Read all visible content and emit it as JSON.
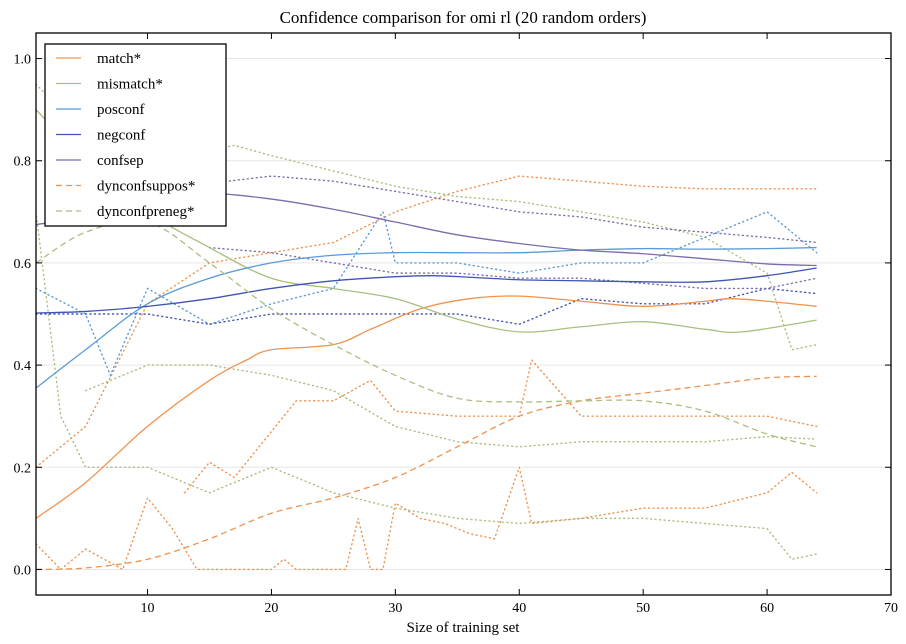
{
  "chart_data": {
    "type": "line",
    "title": "Confidence comparison for omi rl (20 random orders)",
    "xlabel": "Size of training set",
    "ylabel": "",
    "xlim": [
      1,
      70
    ],
    "ylim": [
      -0.05,
      1.05
    ],
    "xticks": [
      10,
      20,
      30,
      40,
      50,
      60,
      70
    ],
    "yticks": [
      0.0,
      0.2,
      0.4,
      0.6,
      0.8,
      1.0
    ],
    "ytick_labels": [
      "0.0",
      "0.2",
      "0.4",
      "0.6",
      "0.8",
      "1.0"
    ],
    "grid": "horizontal",
    "legend_position": "top-left",
    "series": [
      {
        "name": "match*",
        "color": "#f0924e",
        "style": "solid",
        "x": [
          1,
          5,
          10,
          15,
          18,
          20,
          25,
          28,
          32,
          36,
          40,
          45,
          50,
          55,
          57,
          60,
          64
        ],
        "y": [
          0.1,
          0.17,
          0.28,
          0.37,
          0.41,
          0.43,
          0.44,
          0.47,
          0.51,
          0.53,
          0.535,
          0.525,
          0.515,
          0.525,
          0.53,
          0.525,
          0.515
        ]
      },
      {
        "name": "mismatch*",
        "color": "#a9bf80",
        "style": "solid",
        "x": [
          1,
          5,
          10,
          15,
          20,
          25,
          30,
          35,
          40,
          45,
          50,
          55,
          58,
          64
        ],
        "y": [
          0.9,
          0.8,
          0.7,
          0.63,
          0.57,
          0.55,
          0.53,
          0.49,
          0.465,
          0.475,
          0.485,
          0.47,
          0.465,
          0.488
        ]
      },
      {
        "name": "posconf",
        "color": "#5b9bd5",
        "style": "solid",
        "x": [
          1,
          5,
          10,
          15,
          20,
          25,
          30,
          35,
          40,
          45,
          50,
          55,
          60,
          64
        ],
        "y": [
          0.355,
          0.43,
          0.52,
          0.57,
          0.6,
          0.615,
          0.62,
          0.62,
          0.62,
          0.625,
          0.628,
          0.627,
          0.628,
          0.63
        ]
      },
      {
        "name": "negconf",
        "color": "#3f54b4",
        "style": "solid",
        "x": [
          1,
          5,
          10,
          15,
          20,
          25,
          30,
          33,
          36,
          40,
          45,
          50,
          55,
          60,
          64
        ],
        "y": [
          0.502,
          0.505,
          0.515,
          0.53,
          0.55,
          0.565,
          0.573,
          0.575,
          0.572,
          0.567,
          0.565,
          0.563,
          0.563,
          0.575,
          0.59
        ]
      },
      {
        "name": "confsep",
        "color": "#7d6bab",
        "style": "solid",
        "x": [
          1,
          5,
          10,
          15,
          20,
          25,
          30,
          35,
          40,
          45,
          50,
          55,
          60,
          64
        ],
        "y": [
          0.675,
          0.69,
          0.72,
          0.735,
          0.725,
          0.705,
          0.68,
          0.655,
          0.638,
          0.625,
          0.618,
          0.608,
          0.598,
          0.595
        ]
      },
      {
        "name": "dynconfsuppos*",
        "color": "#f0924e",
        "style": "dashed",
        "x": [
          1,
          5,
          10,
          15,
          20,
          25,
          30,
          35,
          40,
          45,
          50,
          55,
          60,
          64
        ],
        "y": [
          0.0,
          0.003,
          0.02,
          0.06,
          0.11,
          0.14,
          0.18,
          0.24,
          0.3,
          0.33,
          0.345,
          0.36,
          0.375,
          0.378
        ]
      },
      {
        "name": "dynconfpreneg*",
        "color": "#a9bf80",
        "style": "dashed",
        "x": [
          1,
          5,
          10,
          15,
          20,
          25,
          30,
          35,
          40,
          45,
          50,
          55,
          60,
          64
        ],
        "y": [
          0.6,
          0.66,
          0.68,
          0.6,
          0.51,
          0.44,
          0.38,
          0.335,
          0.328,
          0.33,
          0.33,
          0.31,
          0.265,
          0.24
        ]
      }
    ],
    "bands": [
      {
        "of": "match*",
        "color": "#f0924e",
        "style": "dotted",
        "x": [
          1,
          5,
          10,
          15,
          20,
          25,
          30,
          35,
          40,
          45,
          50,
          55,
          60,
          64
        ],
        "y": [
          0.2,
          0.28,
          0.52,
          0.6,
          0.62,
          0.64,
          0.7,
          0.74,
          0.77,
          0.76,
          0.75,
          0.745,
          0.745,
          0.745
        ]
      },
      {
        "of": "match*",
        "color": "#f0924e",
        "style": "dotted",
        "x": [
          1,
          3,
          5,
          8,
          10,
          12,
          14,
          20,
          21,
          22,
          26,
          27,
          28,
          29,
          30,
          32,
          34,
          36,
          38,
          40,
          41,
          45,
          50,
          55,
          60,
          62,
          64
        ],
        "y": [
          0.05,
          0.0,
          0.04,
          0.0,
          0.14,
          0.08,
          0.0,
          0.0,
          0.02,
          0.0,
          0.0,
          0.1,
          0.0,
          0.0,
          0.13,
          0.1,
          0.09,
          0.07,
          0.06,
          0.2,
          0.09,
          0.1,
          0.12,
          0.12,
          0.15,
          0.19,
          0.15
        ]
      },
      {
        "of": "match*",
        "color": "#f0924e",
        "style": "dotted",
        "x": [
          13,
          15,
          17,
          20,
          22,
          25,
          28,
          30,
          35,
          40,
          41,
          45,
          50,
          55,
          60,
          64
        ],
        "y": [
          0.15,
          0.21,
          0.18,
          0.27,
          0.33,
          0.33,
          0.37,
          0.31,
          0.3,
          0.3,
          0.41,
          0.3,
          0.3,
          0.3,
          0.3,
          0.28
        ]
      },
      {
        "of": "mismatch*",
        "color": "#a9bf80",
        "style": "dotted",
        "x": [
          1,
          5,
          10,
          15,
          17,
          20,
          25,
          30,
          35,
          40,
          45,
          50,
          55,
          60,
          62,
          64
        ],
        "y": [
          0.95,
          0.85,
          0.8,
          0.82,
          0.83,
          0.81,
          0.78,
          0.75,
          0.73,
          0.72,
          0.7,
          0.68,
          0.65,
          0.58,
          0.43,
          0.44
        ]
      },
      {
        "of": "mismatch*",
        "color": "#a9bf80",
        "style": "dotted",
        "x": [
          1,
          3,
          5,
          10,
          15,
          20,
          25,
          30,
          35,
          40,
          45,
          50,
          55,
          60,
          62,
          64
        ],
        "y": [
          0.7,
          0.3,
          0.2,
          0.2,
          0.15,
          0.2,
          0.15,
          0.12,
          0.1,
          0.09,
          0.1,
          0.1,
          0.09,
          0.08,
          0.02,
          0.03
        ]
      },
      {
        "of": "mismatch*",
        "color": "#a9bf80",
        "style": "dotted",
        "x": [
          5,
          10,
          15,
          20,
          25,
          30,
          35,
          40,
          45,
          50,
          55,
          60,
          64
        ],
        "y": [
          0.35,
          0.4,
          0.4,
          0.38,
          0.35,
          0.28,
          0.25,
          0.24,
          0.25,
          0.25,
          0.25,
          0.26,
          0.255
        ]
      },
      {
        "of": "posconf",
        "color": "#5b9bd5",
        "style": "dotted",
        "x": [
          1,
          5,
          7,
          10,
          15,
          20,
          25,
          29,
          30,
          35,
          40,
          45,
          50,
          55,
          60,
          64
        ],
        "y": [
          0.55,
          0.5,
          0.38,
          0.55,
          0.48,
          0.52,
          0.55,
          0.7,
          0.6,
          0.6,
          0.58,
          0.6,
          0.6,
          0.65,
          0.7,
          0.62
        ]
      },
      {
        "of": "negconf",
        "color": "#3f54b4",
        "style": "dotted",
        "x": [
          1,
          10,
          15,
          20,
          25,
          30,
          35,
          40,
          45,
          50,
          55,
          60,
          64
        ],
        "y": [
          0.5,
          0.5,
          0.48,
          0.5,
          0.5,
          0.5,
          0.5,
          0.48,
          0.53,
          0.52,
          0.52,
          0.55,
          0.54
        ]
      },
      {
        "of": "confsep",
        "color": "#7d6bab",
        "style": "dotted",
        "x": [
          13,
          20,
          25,
          30,
          35,
          40,
          45,
          50,
          55,
          60,
          64
        ],
        "y": [
          0.75,
          0.77,
          0.76,
          0.74,
          0.72,
          0.7,
          0.69,
          0.67,
          0.66,
          0.65,
          0.64
        ]
      },
      {
        "of": "confsep",
        "color": "#7d6bab",
        "style": "dotted",
        "x": [
          15,
          20,
          25,
          30,
          35,
          40,
          45,
          50,
          55,
          60,
          64
        ],
        "y": [
          0.63,
          0.62,
          0.6,
          0.58,
          0.58,
          0.57,
          0.57,
          0.56,
          0.55,
          0.55,
          0.57
        ]
      }
    ]
  }
}
